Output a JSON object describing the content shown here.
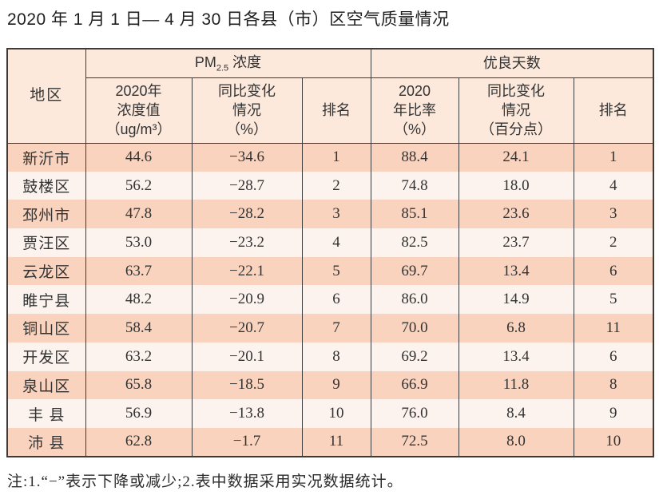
{
  "page": {
    "note": "注:1.“−”表示下降或减少;2.表中数据采用实况数据统计。"
  },
  "colors": {
    "row_odd_bg": "#f9d3be",
    "row_even_bg": "#fcf3ee",
    "header_bg": "#fce9dc",
    "border": "#3b3b3b",
    "text": "#333333",
    "page_bg": "#ffffff"
  },
  "chart_data": {
    "type": "table",
    "title": "2020 年 1 月 1 日— 4 月 30 日各县（市）区空气质量情况",
    "corner_header": "地区",
    "groups": [
      {
        "base": "PM",
        "sub": "2.5",
        "rest": " 浓度"
      },
      {
        "label": "优良天数"
      }
    ],
    "sub_headers": [
      "2020年\n浓度值\n（ug/m³）",
      "同比变化\n情况\n（%）",
      "排名",
      "2020\n年比率\n（%）",
      "同比变化\n情况\n（百分点）",
      "排名"
    ],
    "rows": [
      [
        "新沂市",
        "44.6",
        "−34.6",
        "1",
        "88.4",
        "24.1",
        "1"
      ],
      [
        "鼓楼区",
        "56.2",
        "−28.7",
        "2",
        "74.8",
        "18.0",
        "4"
      ],
      [
        "邳州市",
        "47.8",
        "−28.2",
        "3",
        "85.1",
        "23.6",
        "3"
      ],
      [
        "贾汪区",
        "53.0",
        "−23.2",
        "4",
        "82.5",
        "23.7",
        "2"
      ],
      [
        "云龙区",
        "63.7",
        "−22.1",
        "5",
        "69.7",
        "13.4",
        "6"
      ],
      [
        "睢宁县",
        "48.2",
        "−20.9",
        "6",
        "86.0",
        "14.9",
        "5"
      ],
      [
        "铜山区",
        "58.4",
        "−20.7",
        "7",
        "70.0",
        "6.8",
        "11"
      ],
      [
        "开发区",
        "63.2",
        "−20.1",
        "8",
        "69.2",
        "13.4",
        "6"
      ],
      [
        "泉山区",
        "65.8",
        "−18.5",
        "9",
        "66.9",
        "11.8",
        "8"
      ],
      [
        "丰 县",
        "56.9",
        "−13.8",
        "10",
        "76.0",
        "8.4",
        "9"
      ],
      [
        "沛 县",
        "62.8",
        "−1.7",
        "11",
        "72.5",
        "8.0",
        "10"
      ]
    ]
  }
}
